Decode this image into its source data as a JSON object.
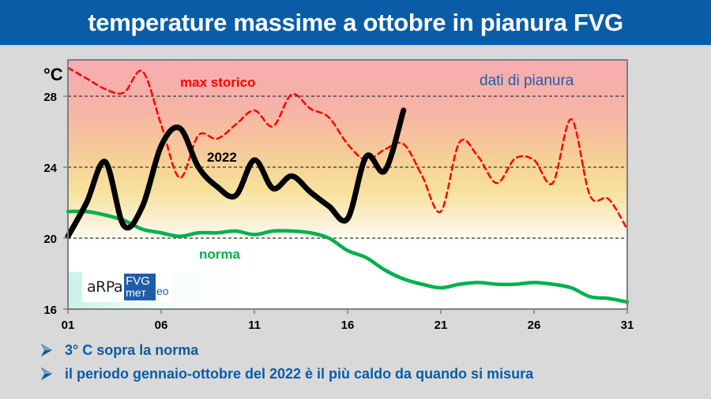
{
  "title": "temperature massime a ottobre in pianura FVG",
  "bullets": [
    "3° C sopra la norma",
    "il periodo gennaio-ottobre del 2022 è il più caldo da quando si misura"
  ],
  "logo": {
    "brand": "aRPa",
    "box_top": "FVG",
    "box_bottom": "meт",
    "tail": "eo"
  },
  "colors": {
    "header_bg": "#0a5ca6",
    "series_2022": "#000000",
    "series_max_storico": "#ff0000",
    "series_norma": "#00b050",
    "annotation_blue": "#1f5fa8"
  },
  "chart_data": {
    "type": "line",
    "title": "temperature massime a ottobre in pianura FVG",
    "xlabel": "",
    "ylabel": "°C",
    "ylim": [
      16,
      30
    ],
    "xlim": [
      1,
      31
    ],
    "yticks": [
      16,
      20,
      24,
      28
    ],
    "xticks": [
      "01",
      "06",
      "11",
      "16",
      "21",
      "26",
      "31"
    ],
    "grid": "horizontal dashed at 20, 24, 28",
    "annotations": [
      "max storico",
      "2022",
      "norma",
      "dati di pianura"
    ],
    "x": [
      1,
      2,
      3,
      4,
      5,
      6,
      7,
      8,
      9,
      10,
      11,
      12,
      13,
      14,
      15,
      16,
      17,
      18,
      19,
      20,
      21,
      22,
      23,
      24,
      25,
      26,
      27,
      28,
      29,
      30,
      31
    ],
    "series": [
      {
        "name": "2022",
        "style": "solid thick black",
        "values": [
          20.1,
          22.0,
          24.3,
          20.7,
          21.8,
          25.2,
          26.2,
          24.0,
          22.9,
          22.4,
          24.4,
          22.8,
          23.5,
          22.6,
          21.8,
          21.1,
          24.6,
          23.8,
          27.2
        ]
      },
      {
        "name": "max storico",
        "style": "dashed red",
        "values": [
          29.6,
          29.0,
          28.4,
          28.2,
          29.4,
          26.4,
          23.4,
          25.8,
          25.6,
          26.4,
          27.2,
          26.3,
          28.1,
          27.3,
          26.8,
          25.3,
          24.4,
          25.0,
          25.3,
          23.5,
          21.5,
          25.4,
          24.6,
          23.1,
          24.5,
          24.4,
          23.1,
          26.7,
          22.4,
          22.2,
          20.5
        ]
      },
      {
        "name": "norma",
        "style": "solid green",
        "values": [
          21.5,
          21.5,
          21.3,
          21.0,
          20.5,
          20.3,
          20.1,
          20.3,
          20.3,
          20.4,
          20.2,
          20.4,
          20.4,
          20.3,
          20.0,
          19.3,
          18.9,
          18.2,
          17.7,
          17.4,
          17.2,
          17.4,
          17.5,
          17.4,
          17.4,
          17.5,
          17.4,
          17.2,
          16.7,
          16.6,
          16.4
        ]
      }
    ]
  }
}
